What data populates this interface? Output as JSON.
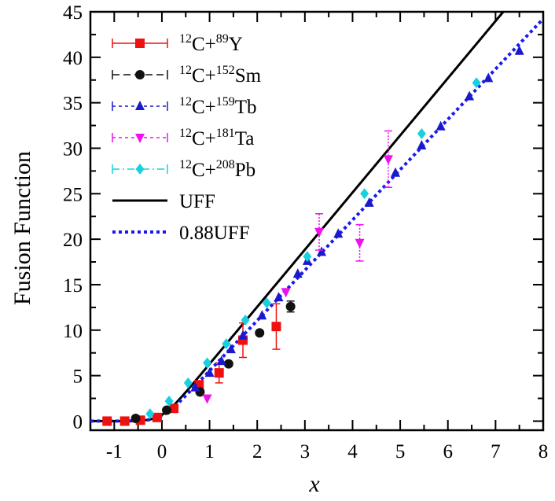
{
  "chart_data": {
    "type": "scatter",
    "xlabel": "x",
    "ylabel": "Fusion Function",
    "xlim": [
      -1.5,
      8
    ],
    "ylim": [
      -1,
      45
    ],
    "xticks": [
      -1,
      0,
      1,
      2,
      3,
      4,
      5,
      6,
      7,
      8
    ],
    "yticks": [
      0,
      5,
      10,
      15,
      20,
      25,
      30,
      35,
      40,
      45
    ],
    "legend_position": "top-left",
    "series": [
      {
        "name": "12C+89Y",
        "label_parts": [
          "12",
          "C+",
          "89",
          "Y"
        ],
        "marker": "square",
        "color": "#ee1111",
        "line": "solid",
        "points": [
          {
            "x": -1.15,
            "y": 0.0,
            "err": 0
          },
          {
            "x": -0.78,
            "y": 0.0,
            "err": 0
          },
          {
            "x": -0.45,
            "y": 0.1,
            "err": 0
          },
          {
            "x": -0.1,
            "y": 0.4,
            "err": 0
          },
          {
            "x": 0.25,
            "y": 1.4,
            "err": 0
          },
          {
            "x": 0.78,
            "y": 4.0,
            "err": 0
          },
          {
            "x": 1.2,
            "y": 5.3,
            "err": 1.1
          },
          {
            "x": 1.7,
            "y": 8.9,
            "err": 1.9
          },
          {
            "x": 2.4,
            "y": 10.4,
            "err": 2.5
          }
        ]
      },
      {
        "name": "12C+152Sm",
        "label_parts": [
          "12",
          "C+",
          "152",
          "Sm"
        ],
        "marker": "circle",
        "color": "#111111",
        "line": "dashed",
        "points": [
          {
            "x": -0.55,
            "y": 0.3,
            "err": 0
          },
          {
            "x": 0.1,
            "y": 1.2,
            "err": 0
          },
          {
            "x": 0.8,
            "y": 3.2,
            "err": 0
          },
          {
            "x": 1.4,
            "y": 6.3,
            "err": 0
          },
          {
            "x": 2.05,
            "y": 9.7,
            "err": 0
          },
          {
            "x": 2.7,
            "y": 12.6,
            "err": 0.6
          }
        ]
      },
      {
        "name": "12C+159Tb",
        "label_parts": [
          "12",
          "C+",
          "159",
          "Tb"
        ],
        "marker": "triangle-up",
        "color": "#1a1acc",
        "line": "dotted",
        "points": [
          {
            "x": 0.7,
            "y": 3.7,
            "err": 0
          },
          {
            "x": 1.0,
            "y": 5.3,
            "err": 0
          },
          {
            "x": 1.25,
            "y": 6.6,
            "err": 0
          },
          {
            "x": 1.45,
            "y": 7.9,
            "err": 0
          },
          {
            "x": 1.7,
            "y": 9.4,
            "err": 0
          },
          {
            "x": 2.1,
            "y": 11.6,
            "err": 0
          },
          {
            "x": 2.45,
            "y": 13.6,
            "err": 0
          },
          {
            "x": 2.85,
            "y": 16.2,
            "err": 0
          },
          {
            "x": 3.05,
            "y": 17.6,
            "err": 0
          },
          {
            "x": 3.35,
            "y": 18.6,
            "err": 0
          },
          {
            "x": 3.7,
            "y": 20.6,
            "err": 0
          },
          {
            "x": 4.35,
            "y": 24.0,
            "err": 0
          },
          {
            "x": 4.9,
            "y": 27.3,
            "err": 0
          },
          {
            "x": 5.45,
            "y": 30.3,
            "err": 0
          },
          {
            "x": 5.85,
            "y": 32.4,
            "err": 0
          },
          {
            "x": 6.45,
            "y": 35.7,
            "err": 0
          },
          {
            "x": 6.85,
            "y": 37.7,
            "err": 0
          },
          {
            "x": 7.5,
            "y": 40.7,
            "err": 0
          }
        ]
      },
      {
        "name": "12C+181Ta",
        "label_parts": [
          "12",
          "C+",
          "181",
          "Ta"
        ],
        "marker": "triangle-down",
        "color": "#ee11ee",
        "line": "dotted",
        "points": [
          {
            "x": 0.95,
            "y": 2.5,
            "err": 0
          },
          {
            "x": 2.6,
            "y": 14.2,
            "err": 0
          },
          {
            "x": 3.3,
            "y": 20.8,
            "err": 2.0
          },
          {
            "x": 4.15,
            "y": 19.6,
            "err": 2.0
          },
          {
            "x": 4.75,
            "y": 28.8,
            "err": 3.1
          }
        ]
      },
      {
        "name": "12C+208Pb",
        "label_parts": [
          "12",
          "C+",
          "208",
          "Pb"
        ],
        "marker": "diamond",
        "color": "#19d0e0",
        "line": "dashdot",
        "points": [
          {
            "x": -0.25,
            "y": 0.8,
            "err": 0
          },
          {
            "x": 0.15,
            "y": 2.2,
            "err": 0
          },
          {
            "x": 0.55,
            "y": 4.2,
            "err": 0
          },
          {
            "x": 0.95,
            "y": 6.4,
            "err": 0
          },
          {
            "x": 1.35,
            "y": 8.5,
            "err": 0
          },
          {
            "x": 1.75,
            "y": 11.1,
            "err": 0
          },
          {
            "x": 2.2,
            "y": 13.0,
            "err": 0
          },
          {
            "x": 3.05,
            "y": 18.1,
            "err": 0
          },
          {
            "x": 4.25,
            "y": 25.0,
            "err": 0
          },
          {
            "x": 5.45,
            "y": 31.6,
            "err": 0
          },
          {
            "x": 6.6,
            "y": 37.2,
            "err": 0
          }
        ]
      }
    ],
    "curves": [
      {
        "name": "UFF",
        "color": "#000000",
        "style": "solid",
        "scale": 1.0
      },
      {
        "name": "0.88UFF",
        "color": "#1a1aee",
        "style": "dotted",
        "scale": 0.88
      }
    ]
  }
}
